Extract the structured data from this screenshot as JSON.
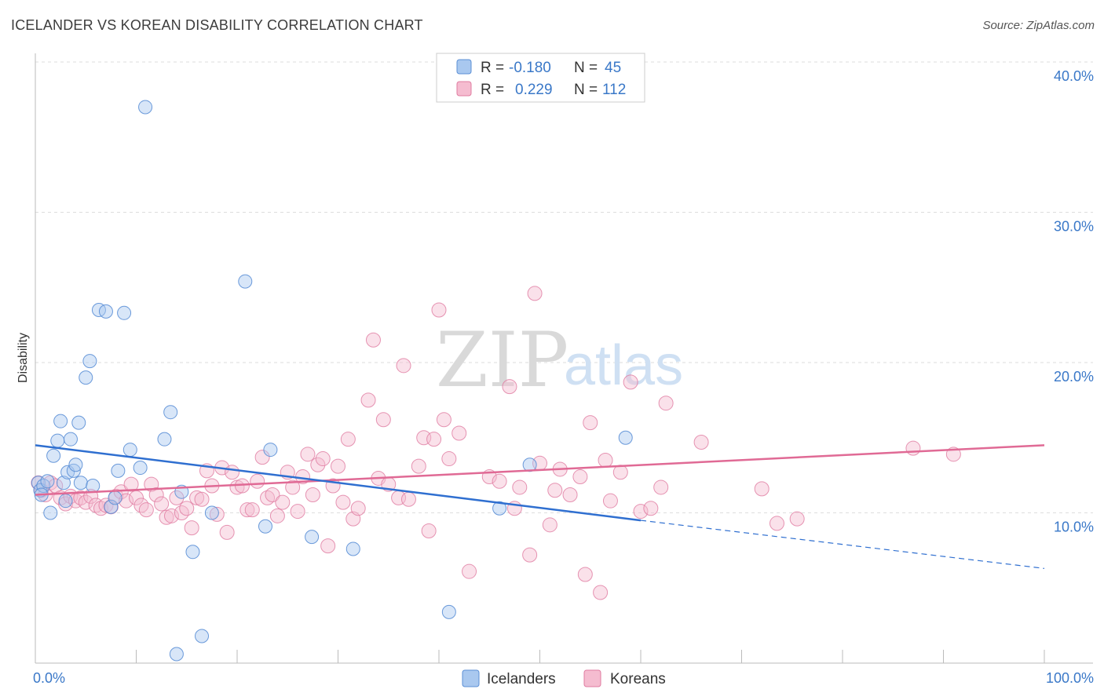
{
  "title": "ICELANDER VS KOREAN DISABILITY CORRELATION CHART",
  "source": "Source: ZipAtlas.com",
  "watermark": {
    "zip": "ZIP",
    "atlas": "atlas"
  },
  "colors": {
    "icelanders": "#5b8fd6",
    "icelanders_fill": "#a9c8ef",
    "koreans": "#e07ba0",
    "koreans_fill": "#f5bcd0",
    "blue_line": "#2f6fd0",
    "pink_line": "#e06a95",
    "axis_text": "#3a78c8",
    "grid": "#dddddd"
  },
  "legend": {
    "row1": {
      "r_label": "R =",
      "r_value": "-0.180",
      "n_label": "N =",
      "n_value": "45"
    },
    "row2": {
      "r_label": "R =",
      "r_value": "0.229",
      "n_label": "N =",
      "n_value": "112"
    }
  },
  "bottom_legend": {
    "icelanders": "Icelanders",
    "koreans": "Koreans"
  },
  "chart_data": {
    "type": "scatter",
    "title": "ICELANDER VS KOREAN DISABILITY CORRELATION CHART",
    "xlabel": "",
    "ylabel": "Disability",
    "xlim": [
      0,
      100
    ],
    "ylim": [
      0,
      42
    ],
    "x_tick_labels": [
      "0.0%",
      "100.0%"
    ],
    "y_ticks": [
      10,
      20,
      30,
      40
    ],
    "y_tick_labels": [
      "10.0%",
      "20.0%",
      "30.0%",
      "40.0%"
    ],
    "grid": true,
    "legend_position": "top-center",
    "series": [
      {
        "name": "Icelanders",
        "r": -0.18,
        "n": 45,
        "trend": {
          "x": [
            0,
            60,
            100
          ],
          "y": [
            14.5,
            9.5,
            6.3
          ],
          "solid_until": 60
        },
        "points": [
          [
            0.3,
            12.0
          ],
          [
            0.5,
            11.5
          ],
          [
            0.8,
            11.8
          ],
          [
            1.5,
            10.0
          ],
          [
            1.2,
            12.1
          ],
          [
            1.8,
            13.8
          ],
          [
            2.2,
            14.8
          ],
          [
            2.5,
            16.1
          ],
          [
            2.8,
            12.0
          ],
          [
            3.2,
            12.7
          ],
          [
            3.5,
            14.9
          ],
          [
            3.8,
            12.8
          ],
          [
            4.0,
            13.2
          ],
          [
            4.3,
            16.0
          ],
          [
            4.5,
            12.0
          ],
          [
            5.0,
            19.0
          ],
          [
            5.4,
            20.1
          ],
          [
            5.7,
            11.8
          ],
          [
            6.3,
            23.5
          ],
          [
            7.0,
            23.4
          ],
          [
            7.5,
            10.4
          ],
          [
            7.9,
            11.0
          ],
          [
            8.2,
            12.8
          ],
          [
            8.8,
            23.3
          ],
          [
            9.4,
            14.2
          ],
          [
            10.4,
            13.0
          ],
          [
            10.9,
            37.0
          ],
          [
            12.8,
            14.9
          ],
          [
            13.4,
            16.7
          ],
          [
            14.0,
            0.6
          ],
          [
            14.5,
            11.4
          ],
          [
            15.6,
            7.4
          ],
          [
            16.5,
            1.8
          ],
          [
            17.5,
            10.0
          ],
          [
            20.8,
            25.4
          ],
          [
            22.8,
            9.1
          ],
          [
            23.3,
            14.2
          ],
          [
            27.4,
            8.4
          ],
          [
            31.5,
            7.6
          ],
          [
            41.0,
            3.4
          ],
          [
            46.0,
            10.3
          ],
          [
            49.0,
            13.2
          ],
          [
            58.5,
            15.0
          ],
          [
            0.6,
            11.2
          ],
          [
            3.0,
            10.8
          ]
        ]
      },
      {
        "name": "Koreans",
        "r": 0.229,
        "n": 112,
        "trend": {
          "x": [
            0,
            100
          ],
          "y": [
            11.2,
            14.5
          ]
        },
        "points": [
          [
            0.3,
            12.0
          ],
          [
            0.6,
            11.5
          ],
          [
            1.0,
            11.2
          ],
          [
            1.5,
            12.0
          ],
          [
            2.0,
            11.8
          ],
          [
            2.5,
            11.0
          ],
          [
            3.0,
            10.6
          ],
          [
            3.5,
            11.1
          ],
          [
            4.0,
            10.8
          ],
          [
            4.5,
            11.0
          ],
          [
            5.0,
            10.7
          ],
          [
            5.5,
            11.1
          ],
          [
            6.0,
            10.5
          ],
          [
            6.5,
            10.3
          ],
          [
            7.0,
            10.5
          ],
          [
            7.5,
            10.4
          ],
          [
            8.0,
            11.1
          ],
          [
            8.5,
            11.4
          ],
          [
            9.0,
            10.8
          ],
          [
            9.5,
            11.9
          ],
          [
            10.0,
            11.0
          ],
          [
            10.5,
            10.5
          ],
          [
            11.0,
            10.2
          ],
          [
            11.5,
            11.9
          ],
          [
            12.0,
            11.2
          ],
          [
            12.5,
            10.6
          ],
          [
            13.0,
            9.7
          ],
          [
            13.5,
            9.8
          ],
          [
            14.0,
            11.0
          ],
          [
            14.5,
            10.0
          ],
          [
            15.0,
            10.3
          ],
          [
            15.5,
            9.0
          ],
          [
            16.0,
            11.0
          ],
          [
            16.5,
            10.9
          ],
          [
            17.0,
            12.8
          ],
          [
            17.5,
            11.8
          ],
          [
            18.0,
            9.9
          ],
          [
            18.5,
            13.0
          ],
          [
            19.0,
            8.7
          ],
          [
            19.5,
            12.7
          ],
          [
            20.0,
            11.7
          ],
          [
            20.5,
            11.8
          ],
          [
            21.0,
            10.2
          ],
          [
            21.5,
            10.2
          ],
          [
            22.0,
            12.1
          ],
          [
            22.5,
            13.7
          ],
          [
            23.0,
            11.0
          ],
          [
            23.5,
            11.2
          ],
          [
            24.0,
            9.8
          ],
          [
            24.5,
            10.7
          ],
          [
            25.0,
            12.7
          ],
          [
            25.5,
            11.7
          ],
          [
            26.0,
            10.1
          ],
          [
            26.5,
            12.4
          ],
          [
            27.0,
            13.9
          ],
          [
            27.5,
            11.2
          ],
          [
            28.0,
            13.2
          ],
          [
            28.5,
            13.6
          ],
          [
            29.0,
            7.8
          ],
          [
            29.5,
            11.8
          ],
          [
            30.0,
            13.1
          ],
          [
            30.5,
            10.7
          ],
          [
            31.0,
            14.9
          ],
          [
            31.5,
            9.6
          ],
          [
            32.0,
            10.3
          ],
          [
            33.0,
            17.5
          ],
          [
            33.5,
            21.5
          ],
          [
            34.0,
            12.3
          ],
          [
            34.5,
            16.2
          ],
          [
            35.0,
            11.9
          ],
          [
            36.0,
            11.0
          ],
          [
            36.5,
            19.8
          ],
          [
            37.0,
            10.9
          ],
          [
            38.0,
            13.1
          ],
          [
            38.5,
            15.0
          ],
          [
            39.0,
            8.8
          ],
          [
            39.5,
            14.9
          ],
          [
            40.0,
            23.5
          ],
          [
            40.5,
            16.2
          ],
          [
            41.0,
            13.6
          ],
          [
            42.0,
            15.3
          ],
          [
            43.0,
            6.1
          ],
          [
            45.0,
            12.4
          ],
          [
            46.0,
            12.1
          ],
          [
            47.0,
            18.4
          ],
          [
            47.5,
            10.3
          ],
          [
            48.0,
            11.7
          ],
          [
            49.0,
            7.2
          ],
          [
            49.5,
            24.6
          ],
          [
            50.0,
            13.3
          ],
          [
            51.0,
            9.2
          ],
          [
            51.5,
            11.5
          ],
          [
            52.0,
            12.9
          ],
          [
            53.0,
            11.2
          ],
          [
            54.0,
            12.4
          ],
          [
            54.5,
            5.9
          ],
          [
            55.0,
            16.0
          ],
          [
            56.0,
            4.7
          ],
          [
            56.5,
            13.5
          ],
          [
            57.0,
            10.8
          ],
          [
            58.0,
            12.7
          ],
          [
            59.0,
            18.7
          ],
          [
            60.0,
            10.1
          ],
          [
            61.0,
            10.3
          ],
          [
            62.0,
            11.7
          ],
          [
            62.5,
            17.3
          ],
          [
            66.0,
            14.7
          ],
          [
            72.0,
            11.6
          ],
          [
            73.5,
            9.3
          ],
          [
            75.5,
            9.6
          ],
          [
            87.0,
            14.3
          ],
          [
            91.0,
            13.9
          ]
        ]
      }
    ]
  }
}
